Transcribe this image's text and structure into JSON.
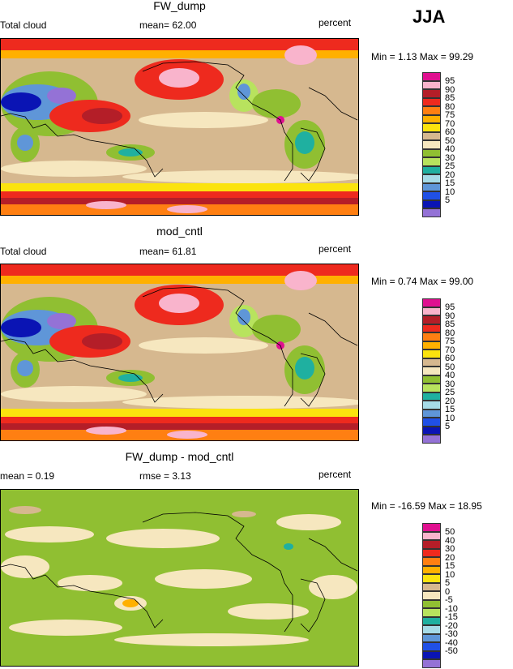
{
  "season": "JJA",
  "panels": [
    {
      "title": "FW_dump",
      "left_label": "Total cloud",
      "mid_label": "mean=  62.00",
      "right_label": "percent",
      "minmax": "Min =   1.13 Max =  99.29",
      "legend_levels": [
        "95",
        "90",
        "85",
        "80",
        "75",
        "70",
        "60",
        "50",
        "40",
        "30",
        "25",
        "20",
        "15",
        "10",
        "5"
      ]
    },
    {
      "title": "mod_cntl",
      "left_label": "Total cloud",
      "mid_label": "mean=  61.81",
      "right_label": "percent",
      "minmax": "Min =   0.74 Max =  99.00",
      "legend_levels": [
        "95",
        "90",
        "85",
        "80",
        "75",
        "70",
        "60",
        "50",
        "40",
        "30",
        "25",
        "20",
        "15",
        "10",
        "5"
      ]
    },
    {
      "title": "FW_dump - mod_cntl",
      "left_label": "mean =   0.19",
      "mid_label": "rmse =   3.13",
      "right_label": "percent",
      "minmax": "Min = -16.59 Max =  18.95",
      "legend_levels": [
        "50",
        "40",
        "30",
        "20",
        "15",
        "10",
        "5",
        "0",
        "-5",
        "-10",
        "-15",
        "-20",
        "-30",
        "-40",
        "-50"
      ]
    }
  ],
  "colors": {
    "cloud_scale": [
      "#e01090",
      "#f9b4cc",
      "#b41e28",
      "#ee2a1e",
      "#ff7f12",
      "#ffb000",
      "#fbe30e",
      "#d6b88f",
      "#f6e7bf",
      "#90bf32",
      "#b8e35e",
      "#1fb0a0",
      "#a6dbe7",
      "#5f96d8",
      "#2050e6",
      "#0a14b4",
      "#9472d6"
    ],
    "diff_scale": [
      "#e01090",
      "#f9b4cc",
      "#b41e28",
      "#ee2a1e",
      "#ff7f12",
      "#ffb000",
      "#fbe30e",
      "#d6b88f",
      "#f6e7bf",
      "#90bf32",
      "#b8e35e",
      "#1fb0a0",
      "#a6dbe7",
      "#5f96d8",
      "#2050e6",
      "#0a14b4",
      "#9472d6"
    ]
  }
}
